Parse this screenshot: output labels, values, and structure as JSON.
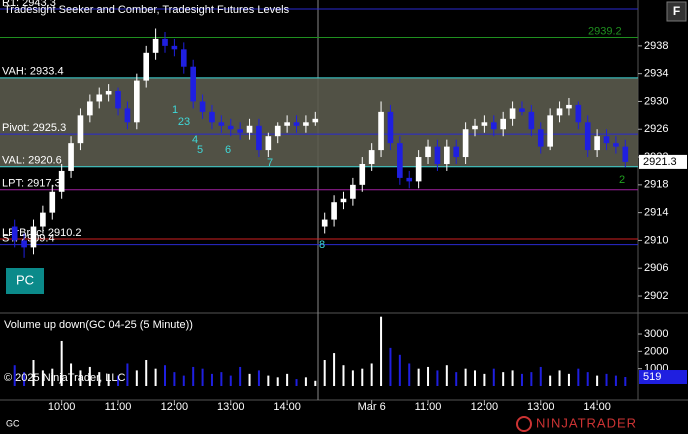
{
  "chart_data": {
    "type": "candlestick",
    "title": "Tradesight Seeker and Comber, Tradesight Futures Levels",
    "instrument": "GC",
    "button": "F",
    "badge": "PC",
    "copyright": "© 2025 NinjaTrader, LLC",
    "logo": "NINJATRADER",
    "categories": [
      null,
      null,
      null,
      null,
      null,
      "10:00",
      null,
      null,
      null,
      null,
      null,
      "11:00",
      null,
      null,
      null,
      null,
      null,
      "12:00",
      null,
      null,
      null,
      null,
      null,
      "13:00",
      null,
      null,
      null,
      null,
      null,
      "14:00",
      null,
      null,
      null,
      null,
      null,
      null,
      null,
      null,
      "Mar 6",
      null,
      null,
      null,
      null,
      null,
      "11:00",
      null,
      null,
      null,
      null,
      null,
      "12:00",
      null,
      null,
      null,
      null,
      null,
      "13:00",
      null,
      null,
      null,
      null,
      null,
      "14:00",
      null,
      null,
      null
    ],
    "open": [
      2912,
      2910,
      2909,
      2912,
      2914,
      2917,
      2920,
      2924,
      2928,
      2930,
      2931,
      2931.5,
      2929,
      2927,
      2933,
      2937,
      2939,
      2938,
      2937.5,
      2935,
      2930,
      2928.5,
      2927,
      2926.5,
      2926,
      2925.5,
      2926.5,
      2923,
      2925,
      2926.5,
      2927,
      2926.5,
      2927,
      2912,
      2913,
      2915.5,
      2916,
      2918,
      2921,
      2923,
      2928.5,
      2924,
      2919,
      2918.5,
      2922,
      2923.5,
      2921,
      2923.5,
      2922,
      2926,
      2926.5,
      2927,
      2926,
      2927.5,
      2929,
      2928.5,
      2926,
      2923.5,
      2928,
      2929,
      2929.5,
      2927,
      2923,
      2925,
      2924,
      2923.5
    ],
    "high": [
      2913,
      2911,
      2913,
      2915,
      2918,
      2921,
      2925,
      2929,
      2931,
      2932,
      2932.5,
      2932,
      2930,
      2934,
      2938,
      2940.5,
      2940,
      2939,
      2938.5,
      2936,
      2931,
      2929.5,
      2928,
      2927.5,
      2927,
      2927.5,
      2927.5,
      2925.5,
      2927,
      2928,
      2928,
      2928,
      2928.5,
      2914,
      2916.5,
      2917,
      2919,
      2922,
      2924,
      2930,
      2929.5,
      2925,
      2920,
      2923,
      2924.5,
      2924.5,
      2924.5,
      2924.5,
      2927,
      2927.5,
      2928,
      2928,
      2928.5,
      2930,
      2930,
      2929.5,
      2927,
      2929,
      2930,
      2930.5,
      2930,
      2928,
      2926,
      2926,
      2925,
      2924.5
    ],
    "low": [
      2909,
      2907.5,
      2908,
      2911,
      2913,
      2916,
      2919,
      2923,
      2927,
      2929,
      2930,
      2928,
      2926,
      2926,
      2932,
      2936,
      2937,
      2936.5,
      2934,
      2929,
      2927.5,
      2926,
      2925.5,
      2925,
      2924.5,
      2924.5,
      2922,
      2922,
      2924,
      2925.5,
      2925.5,
      2925.5,
      2926.5,
      2911,
      2912,
      2914.5,
      2915,
      2917,
      2920,
      2922,
      2923,
      2918,
      2917.5,
      2917.5,
      2921,
      2920,
      2920,
      2921,
      2921,
      2925,
      2925.5,
      2925,
      2925,
      2926.5,
      2928,
      2925,
      2922.5,
      2923,
      2927,
      2928,
      2926,
      2922,
      2922,
      2923,
      2922.5,
      2920.5
    ],
    "close": [
      2910,
      2909,
      2912,
      2914,
      2917,
      2920,
      2924,
      2928,
      2930,
      2931,
      2931.5,
      2929,
      2927,
      2933,
      2937,
      2939,
      2938,
      2937.5,
      2935,
      2930,
      2928.5,
      2927,
      2926.5,
      2926,
      2925.5,
      2926.5,
      2923,
      2925,
      2926.5,
      2927,
      2926.5,
      2927,
      2927.5,
      2913,
      2915.5,
      2916,
      2918,
      2921,
      2923,
      2928.5,
      2924,
      2919,
      2918.5,
      2922,
      2923.5,
      2921,
      2923.5,
      2922,
      2926,
      2926.5,
      2927,
      2926,
      2927.5,
      2929,
      2928.5,
      2926,
      2923.5,
      2928,
      2929,
      2929.5,
      2927,
      2923,
      2925,
      2924,
      2923.5,
      2921.3
    ],
    "up_color": "#ffffff",
    "down_color": "#1f1fe0",
    "ylim": [
      2899.7,
      2944.6
    ],
    "yticks": [
      2902,
      2906,
      2910,
      2914,
      2918,
      2922,
      2926,
      2930,
      2934,
      2938
    ],
    "last_price": 2921.3,
    "value_area": {
      "high": 2933.4,
      "low": 2920.6,
      "color": "#5a5a4c"
    },
    "levels": [
      {
        "label": "R1: 2943.3",
        "value": 2943.3,
        "color": "#2a2ad0"
      },
      {
        "label": "2939.2",
        "value": 2939.2,
        "color": "#1f8f1f",
        "side": "right"
      },
      {
        "label": "VAH: 2933.4",
        "value": 2933.4,
        "color": "#3fd8d8"
      },
      {
        "label": "Pivot: 2925.3",
        "value": 2925.3,
        "color": "#2a2ad0"
      },
      {
        "label": "VAL: 2920.6",
        "value": 2920.6,
        "color": "#3fd8d8"
      },
      {
        "label": "LPT: 2917.3",
        "value": 2917.3,
        "color": "#a020a0"
      },
      {
        "label": "LPrBrac: 2910.2",
        "value": 2910.2,
        "color": "#d02020"
      },
      {
        "label": "ST: 2909.4",
        "value": 2909.4,
        "color": "#2a2ad0"
      }
    ],
    "annotations": [
      "1",
      "23",
      "4",
      "5",
      "6",
      "7",
      "8",
      "2"
    ],
    "volume": {
      "title": "Volume up down(GC 04-25 (5 Minute))",
      "values": [
        1200,
        800,
        1500,
        900,
        1000,
        2600,
        1300,
        900,
        1100,
        800,
        700,
        600,
        1300,
        900,
        1500,
        1000,
        1200,
        800,
        600,
        1100,
        1000,
        700,
        800,
        600,
        1100,
        700,
        900,
        600,
        500,
        700,
        400,
        500,
        300,
        1500,
        1900,
        1200,
        900,
        1000,
        1300,
        4000,
        2200,
        1800,
        1300,
        1000,
        1100,
        900,
        1200,
        800,
        1000,
        900,
        700,
        1000,
        800,
        900,
        700,
        800,
        1100,
        600,
        900,
        700,
        1000,
        800,
        600,
        700,
        600,
        519
      ],
      "ylim": [
        0,
        4040
      ],
      "yticks": [
        1000,
        2000,
        3000
      ],
      "last": 519
    }
  }
}
